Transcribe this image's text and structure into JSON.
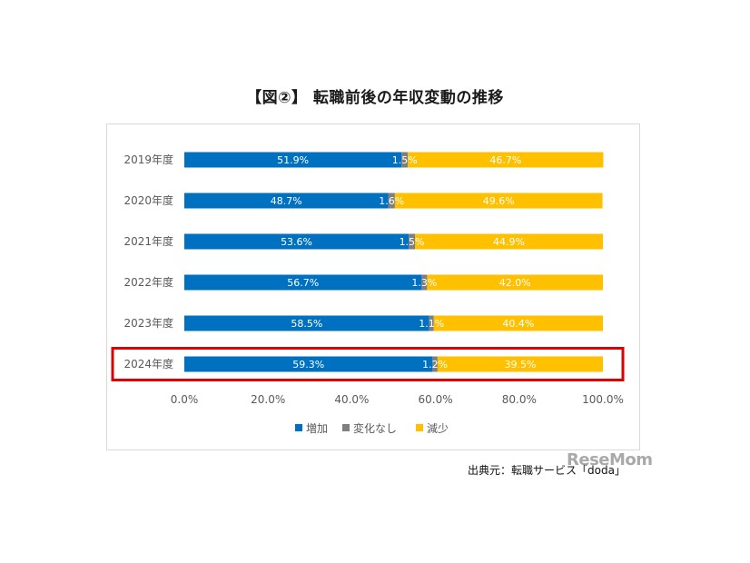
{
  "title": "【図②】 転職前後の年収変動の推移",
  "source_note": "出典元：転職サービス「doda」",
  "watermark": "ReseMom",
  "chart_data": {
    "type": "bar",
    "orientation": "horizontal",
    "stacked": "percent",
    "categories": [
      "2019年度",
      "2020年度",
      "2021年度",
      "2022年度",
      "2023年度",
      "2024年度"
    ],
    "series": [
      {
        "name": "増加",
        "color": "#0070c0",
        "values": [
          51.9,
          48.7,
          53.6,
          56.7,
          58.5,
          59.3
        ],
        "labels": [
          "51.9%",
          "48.7%",
          "53.6%",
          "56.7%",
          "58.5%",
          "59.3%"
        ]
      },
      {
        "name": "変化なし",
        "color": "#7f7f7f",
        "values": [
          1.5,
          1.6,
          1.5,
          1.3,
          1.1,
          1.2
        ],
        "labels": [
          "1.5%",
          "1.6%",
          "1.5%",
          "1.3%",
          "1.1%",
          "1.2%"
        ]
      },
      {
        "name": "減少",
        "color": "#ffc000",
        "values": [
          46.7,
          49.6,
          44.9,
          42.0,
          40.4,
          39.5
        ],
        "labels": [
          "46.7%",
          "49.6%",
          "44.9%",
          "42.0%",
          "40.4%",
          "39.5%"
        ]
      }
    ],
    "xlim": [
      0,
      100
    ],
    "xticks": [
      "0.0%",
      "20.0%",
      "40.0%",
      "60.0%",
      "80.0%",
      "100.0%"
    ],
    "highlight_category": "2024年度",
    "highlight_color": "#e00000",
    "legend_position": "bottom",
    "grid": false
  }
}
